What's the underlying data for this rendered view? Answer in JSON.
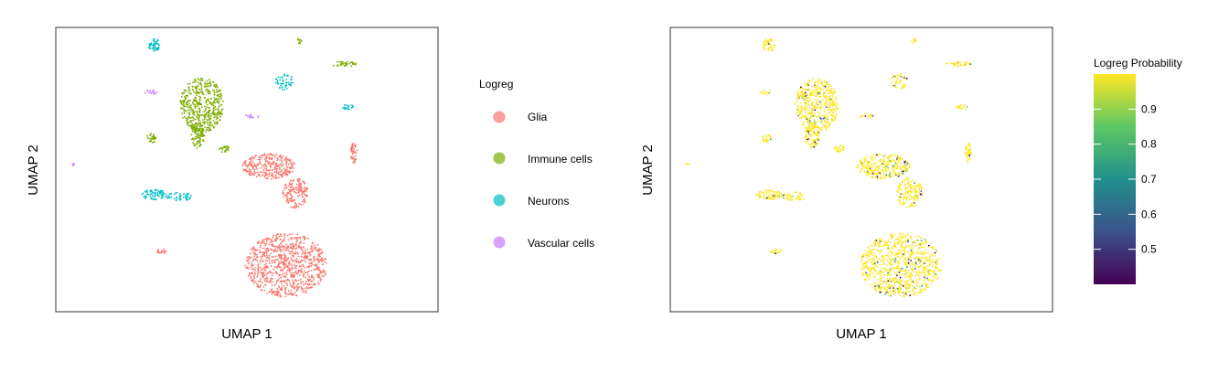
{
  "chart_data": [
    {
      "type": "scatter",
      "xlabel": "UMAP 1",
      "ylabel": "UMAP 2",
      "legend": {
        "title": "Logreg",
        "placement": "right",
        "entries": [
          {
            "name": "Glia",
            "color": "#F8766D"
          },
          {
            "name": "Immune cells",
            "color": "#7CAE00"
          },
          {
            "name": "Neurons",
            "color": "#00BFC4"
          },
          {
            "name": "Vascular cells",
            "color": "#C77CFF"
          }
        ]
      },
      "grid": false
    },
    {
      "type": "scatter",
      "xlabel": "UMAP 1",
      "ylabel": "UMAP 2",
      "colorbar": {
        "title": "Logreg Probability",
        "placement": "right",
        "ticks": [
          "0.5",
          "0.6",
          "0.7",
          "0.8",
          "0.9"
        ],
        "range": [
          0.4,
          1.0
        ],
        "colors": [
          "#440154",
          "#3B528B",
          "#21908C",
          "#5DC863",
          "#FDE725"
        ]
      },
      "grid": false
    }
  ]
}
